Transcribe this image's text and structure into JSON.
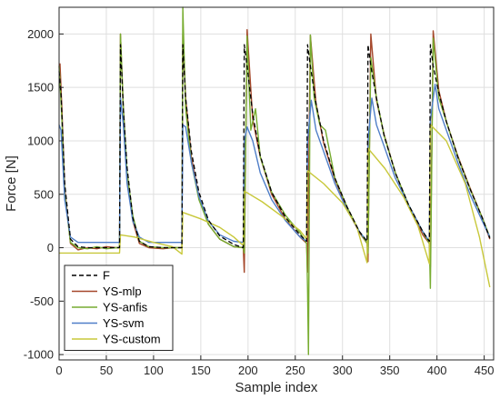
{
  "chart_data": {
    "type": "line",
    "title": "",
    "xlabel": "Sample index",
    "ylabel": "Force [N]",
    "xlim": [
      0,
      460
    ],
    "ylim": [
      -1050,
      2250
    ],
    "xticks": [
      0,
      50,
      100,
      150,
      200,
      250,
      300,
      350,
      400,
      450
    ],
    "yticks": [
      -1000,
      -500,
      0,
      500,
      1000,
      1500,
      2000
    ],
    "grid": true,
    "legend_position": "bottom-left",
    "series": [
      {
        "name": "F",
        "color": "#000000",
        "dash": true,
        "x": [
          0,
          2,
          6,
          12,
          20,
          30,
          40,
          50,
          60,
          64,
          65,
          68,
          72,
          78,
          85,
          95,
          110,
          120,
          130,
          131,
          134,
          140,
          148,
          158,
          170,
          185,
          195,
          196,
          199,
          205,
          213,
          225,
          240,
          255,
          262,
          263,
          266,
          272,
          280,
          292,
          305,
          318,
          326,
          327,
          330,
          336,
          344,
          356,
          370,
          385,
          392,
          393,
          396,
          402,
          410,
          422,
          435,
          448,
          456
        ],
        "y": [
          1650,
          1450,
          600,
          80,
          10,
          0,
          0,
          0,
          0,
          0,
          1900,
          1300,
          750,
          280,
          60,
          10,
          0,
          0,
          0,
          1900,
          1400,
          900,
          520,
          260,
          110,
          30,
          0,
          1900,
          1700,
          1250,
          860,
          520,
          280,
          120,
          60,
          1900,
          1700,
          1350,
          1000,
          650,
          380,
          150,
          60,
          1900,
          1700,
          1400,
          1050,
          700,
          400,
          150,
          60,
          1900,
          1700,
          1450,
          1180,
          850,
          550,
          280,
          90
        ]
      },
      {
        "name": "YS-mlp",
        "color": "#a5472a",
        "dash": false,
        "x": [
          0,
          1,
          3,
          6,
          12,
          20,
          30,
          40,
          50,
          60,
          64,
          65,
          68,
          72,
          78,
          85,
          95,
          110,
          120,
          130,
          131,
          134,
          140,
          148,
          158,
          170,
          185,
          195,
          196,
          199,
          205,
          213,
          225,
          240,
          255,
          262,
          263,
          266,
          272,
          280,
          292,
          305,
          318,
          326,
          327,
          330,
          336,
          344,
          356,
          370,
          385,
          392,
          393,
          396,
          402,
          410,
          422,
          435,
          448,
          456
        ],
        "y": [
          1700,
          1720,
          1300,
          550,
          40,
          -20,
          0,
          -10,
          10,
          0,
          0,
          2000,
          1300,
          700,
          250,
          40,
          0,
          -10,
          0,
          0,
          2000,
          1400,
          850,
          480,
          220,
          80,
          10,
          0,
          -230,
          2040,
          1200,
          850,
          500,
          260,
          100,
          40,
          -230,
          1990,
          1350,
          980,
          640,
          360,
          140,
          40,
          -130,
          2000,
          1380,
          1060,
          700,
          390,
          120,
          40,
          -180,
          2030,
          1470,
          1180,
          860,
          560,
          280,
          80
        ]
      },
      {
        "name": "YS-anfis",
        "color": "#77ac30",
        "dash": false,
        "x": [
          0,
          1,
          3,
          6,
          12,
          20,
          30,
          40,
          50,
          60,
          64,
          65,
          68,
          72,
          78,
          85,
          95,
          110,
          120,
          130,
          131,
          134,
          140,
          148,
          158,
          170,
          185,
          195,
          196,
          199,
          203,
          208,
          213,
          225,
          240,
          255,
          262,
          263,
          264,
          266,
          270,
          276,
          282,
          292,
          305,
          318,
          326,
          327,
          330,
          336,
          344,
          356,
          370,
          385,
          392,
          393,
          396,
          402,
          410,
          422,
          435,
          448,
          456
        ],
        "y": [
          1700,
          1550,
          1200,
          500,
          50,
          0,
          -10,
          10,
          -10,
          0,
          0,
          2000,
          1300,
          700,
          300,
          60,
          10,
          0,
          0,
          0,
          2250,
          1300,
          800,
          450,
          220,
          80,
          10,
          0,
          -50,
          1980,
          1100,
          1300,
          850,
          520,
          300,
          140,
          40,
          -380,
          -1000,
          1990,
          1400,
          1150,
          1100,
          650,
          380,
          150,
          40,
          -50,
          1780,
          1400,
          1050,
          700,
          400,
          150,
          40,
          -380,
          1960,
          1400,
          1180,
          850,
          550,
          280,
          100
        ]
      },
      {
        "name": "YS-svm",
        "color": "#4f7ec8",
        "dash": false,
        "x": [
          0,
          2,
          6,
          12,
          20,
          30,
          40,
          50,
          60,
          64,
          65,
          68,
          72,
          78,
          85,
          95,
          110,
          120,
          130,
          131,
          134,
          140,
          148,
          158,
          170,
          185,
          195,
          196,
          199,
          205,
          213,
          225,
          240,
          255,
          262,
          263,
          267,
          272,
          280,
          292,
          305,
          318,
          326,
          327,
          331,
          336,
          344,
          356,
          370,
          385,
          392,
          393,
          398,
          402,
          410,
          422,
          435,
          448,
          456
        ],
        "y": [
          1150,
          1100,
          450,
          100,
          50,
          50,
          50,
          50,
          50,
          50,
          1400,
          1150,
          600,
          250,
          100,
          50,
          50,
          50,
          50,
          1150,
          1130,
          800,
          480,
          250,
          120,
          60,
          50,
          1000,
          1130,
          1000,
          700,
          450,
          250,
          100,
          60,
          1000,
          1380,
          1100,
          900,
          600,
          350,
          150,
          60,
          1000,
          1400,
          1150,
          950,
          650,
          400,
          150,
          60,
          1200,
          1530,
          1300,
          1100,
          800,
          500,
          250,
          100
        ]
      },
      {
        "name": "YS-custom",
        "color": "#c8c83a",
        "dash": false,
        "x": [
          0,
          64,
          65,
          80,
          100,
          120,
          130,
          131,
          150,
          170,
          185,
          195,
          196,
          215,
          235,
          255,
          262,
          263,
          280,
          300,
          315,
          326,
          327,
          345,
          365,
          380,
          392,
          393,
          410,
          430,
          445,
          456
        ],
        "y": [
          -50,
          -50,
          120,
          100,
          50,
          10,
          -60,
          330,
          270,
          190,
          100,
          20,
          530,
          430,
          300,
          160,
          80,
          720,
          600,
          420,
          200,
          -140,
          930,
          740,
          470,
          200,
          -150,
          1150,
          1000,
          600,
          100,
          -370
        ]
      }
    ]
  }
}
